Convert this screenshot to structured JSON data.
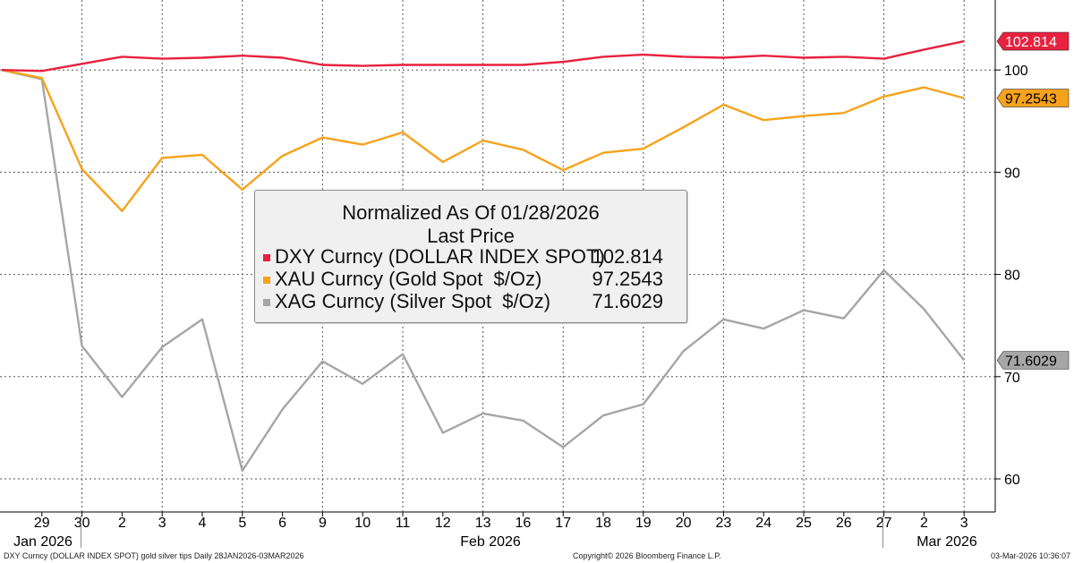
{
  "chart_data": {
    "type": "line",
    "title": "Normalized As Of 01/28/2026",
    "subtitle": "Last Price",
    "x_day_labels": [
      "29",
      "30",
      "2",
      "3",
      "4",
      "5",
      "6",
      "9",
      "10",
      "11",
      "12",
      "13",
      "16",
      "17",
      "18",
      "19",
      "20",
      "23",
      "24",
      "25",
      "26",
      "27",
      "2",
      "3"
    ],
    "x_period_labels": [
      "Jan 2026",
      "Feb 2026",
      "Mar 2026"
    ],
    "ylim": [
      55,
      107
    ],
    "yticks": [
      60,
      70,
      80,
      90,
      100
    ],
    "grid": true,
    "legend_position": "center",
    "series": [
      {
        "name": "DXY Curncy (DOLLAR INDEX SPOT)",
        "color": "#e8213e",
        "last_label": "102.814",
        "values": [
          100.0,
          99.9,
          100.6,
          101.3,
          101.1,
          101.2,
          101.4,
          101.2,
          100.5,
          100.4,
          100.5,
          100.5,
          100.5,
          100.5,
          100.8,
          101.3,
          101.5,
          101.3,
          101.2,
          101.4,
          101.2,
          101.3,
          101.1,
          102.0,
          102.814
        ]
      },
      {
        "name": "XAU Curncy (Gold Spot  $/Oz)",
        "color": "#f7a21b",
        "last_label": "97.2543",
        "values": [
          100.0,
          99.2,
          90.3,
          86.2,
          91.4,
          91.7,
          88.3,
          91.6,
          93.4,
          92.7,
          93.9,
          91.0,
          93.1,
          92.2,
          90.2,
          91.9,
          92.3,
          94.4,
          96.6,
          95.1,
          95.5,
          95.8,
          97.4,
          98.3,
          97.2543
        ]
      },
      {
        "name": "XAG Curncy (Silver Spot  $/Oz)",
        "color": "#a6a6a6",
        "last_label": "71.6029",
        "values": [
          100.0,
          99.1,
          73.0,
          68.0,
          72.9,
          75.6,
          60.8,
          66.8,
          71.5,
          69.3,
          72.2,
          64.5,
          66.4,
          65.7,
          63.1,
          66.2,
          67.3,
          72.5,
          75.6,
          74.7,
          76.5,
          75.7,
          80.4,
          76.6,
          71.6029
        ]
      }
    ]
  },
  "legend": {
    "title": "Normalized As Of 01/28/2026",
    "subtitle": "Last Price",
    "rows": [
      {
        "name": "DXY Curncy (DOLLAR INDEX SPOT)",
        "value": "102.814",
        "color": "#e8213e"
      },
      {
        "name": "XAU Curncy (Gold Spot  $/Oz)",
        "value": "97.2543",
        "color": "#f7a21b"
      },
      {
        "name": "XAG Curncy (Silver Spot  $/Oz)",
        "value": "71.6029",
        "color": "#a6a6a6"
      }
    ]
  },
  "footer": {
    "left": "DXY Curncy (DOLLAR INDEX SPOT) gold silver tips Daily 28JAN2026-03MAR2026",
    "center": "Copyright© 2026 Bloomberg Finance L.P.",
    "right": "03-Mar-2026 10:36:07"
  }
}
